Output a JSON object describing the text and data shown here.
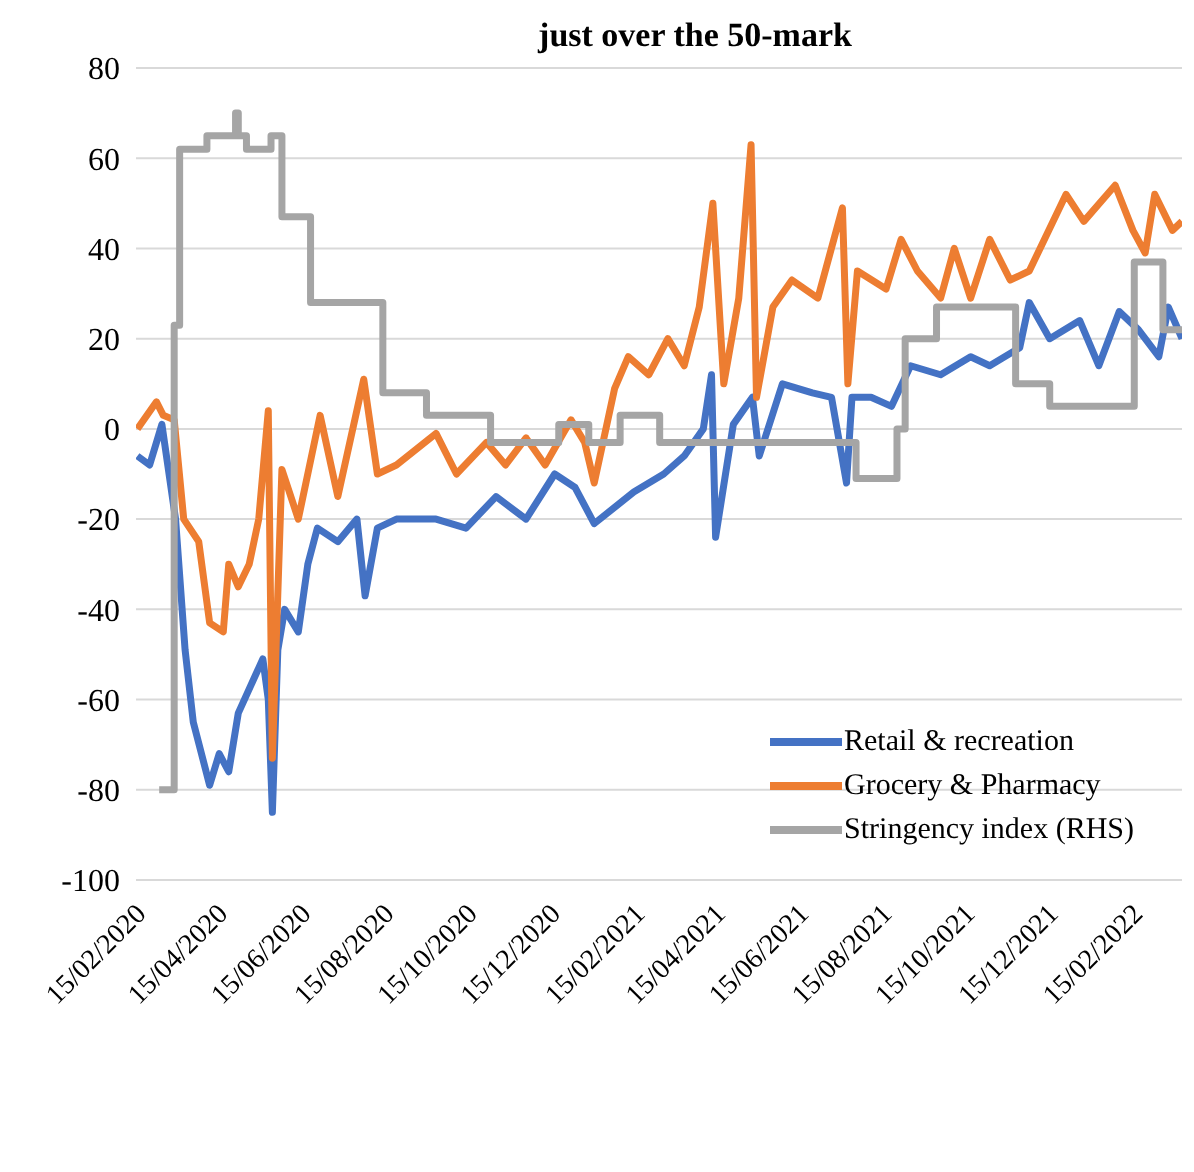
{
  "chart_data": {
    "type": "line",
    "title": "just over the 50-mark",
    "xlim": [
      "2020-02-15",
      "2022-03-23"
    ],
    "ylim": [
      -100,
      80
    ],
    "yticks": [
      -100,
      -80,
      -60,
      -40,
      -20,
      0,
      20,
      40,
      60,
      80
    ],
    "xticks": [
      {
        "value": "2020-02-15",
        "label": "15/02/2020"
      },
      {
        "value": "2020-04-15",
        "label": "15/04/2020"
      },
      {
        "value": "2020-06-15",
        "label": "15/06/2020"
      },
      {
        "value": "2020-08-15",
        "label": "15/08/2020"
      },
      {
        "value": "2020-10-15",
        "label": "15/10/2020"
      },
      {
        "value": "2020-12-15",
        "label": "15/12/2020"
      },
      {
        "value": "2021-02-15",
        "label": "15/02/2021"
      },
      {
        "value": "2021-04-15",
        "label": "15/04/2021"
      },
      {
        "value": "2021-06-15",
        "label": "15/06/2021"
      },
      {
        "value": "2021-08-15",
        "label": "15/08/2021"
      },
      {
        "value": "2021-10-15",
        "label": "15/10/2021"
      },
      {
        "value": "2021-12-15",
        "label": "15/12/2021"
      },
      {
        "value": "2022-02-15",
        "label": "15/02/2022"
      }
    ],
    "grid": "y",
    "legend": "bottom right",
    "marker": "none",
    "line_style": "solid",
    "series": [
      {
        "name": "Retail & recreation",
        "color": "#4472c4",
        "x": [
          "2020-02-16",
          "2020-02-25",
          "2020-03-05",
          "2020-03-15",
          "2020-03-22",
          "2020-03-28",
          "2020-04-09",
          "2020-04-16",
          "2020-04-23",
          "2020-04-30",
          "2020-05-12",
          "2020-05-18",
          "2020-05-22",
          "2020-05-25",
          "2020-05-29",
          "2020-06-03",
          "2020-06-13",
          "2020-06-20",
          "2020-06-27",
          "2020-07-12",
          "2020-07-26",
          "2020-08-01",
          "2020-08-10",
          "2020-08-24",
          "2020-09-22",
          "2020-10-14",
          "2020-11-05",
          "2020-11-27",
          "2020-12-18",
          "2021-01-02",
          "2021-01-16",
          "2021-02-14",
          "2021-03-08",
          "2021-03-23",
          "2021-04-06",
          "2021-04-12",
          "2021-04-15",
          "2021-04-28",
          "2021-05-12",
          "2021-05-17",
          "2021-06-03",
          "2021-06-25",
          "2021-07-09",
          "2021-07-20",
          "2021-07-24",
          "2021-08-07",
          "2021-08-22",
          "2021-09-05",
          "2021-09-27",
          "2021-10-19",
          "2021-11-02",
          "2021-11-24",
          "2021-12-01",
          "2021-12-16",
          "2022-01-07",
          "2022-01-21",
          "2022-02-05",
          "2022-02-19",
          "2022-03-06",
          "2022-03-13",
          "2022-03-23"
        ],
        "values": [
          -6,
          -8,
          1,
          -20,
          -49,
          -65,
          -79,
          -72,
          -76,
          -63,
          -55,
          -51,
          -60,
          -85,
          -49,
          -40,
          -45,
          -30,
          -22,
          -25,
          -20,
          -37,
          -22,
          -20,
          -20,
          -22,
          -15,
          -20,
          -10,
          -13,
          -21,
          -14,
          -10,
          -6,
          0,
          12,
          -24,
          1,
          7,
          -6,
          10,
          8,
          7,
          -12,
          7,
          7,
          5,
          14,
          12,
          16,
          14,
          18,
          28,
          20,
          24,
          14,
          26,
          22,
          16,
          27,
          20
        ]
      },
      {
        "name": "Grocery & Pharmacy",
        "color": "#ed7d31",
        "x": [
          "2020-02-16",
          "2020-03-01",
          "2020-03-06",
          "2020-03-14",
          "2020-03-21",
          "2020-04-01",
          "2020-04-09",
          "2020-04-19",
          "2020-04-23",
          "2020-04-30",
          "2020-05-08",
          "2020-05-15",
          "2020-05-22",
          "2020-05-25",
          "2020-06-01",
          "2020-06-13",
          "2020-06-29",
          "2020-07-12",
          "2020-07-31",
          "2020-08-10",
          "2020-08-24",
          "2020-09-22",
          "2020-10-07",
          "2020-10-29",
          "2020-11-12",
          "2020-11-27",
          "2020-12-11",
          "2020-12-30",
          "2021-01-09",
          "2021-01-16",
          "2021-01-31",
          "2021-02-10",
          "2021-02-25",
          "2021-03-11",
          "2021-03-23",
          "2021-04-03",
          "2021-04-13",
          "2021-04-21",
          "2021-05-02",
          "2021-05-11",
          "2021-05-15",
          "2021-05-27",
          "2021-06-10",
          "2021-06-29",
          "2021-07-17",
          "2021-07-21",
          "2021-07-28",
          "2021-08-18",
          "2021-08-29",
          "2021-09-10",
          "2021-09-27",
          "2021-10-07",
          "2021-10-19",
          "2021-11-02",
          "2021-11-17",
          "2021-12-01",
          "2021-12-28",
          "2022-01-10",
          "2022-02-02",
          "2022-02-15",
          "2022-02-24",
          "2022-03-03",
          "2022-03-16",
          "2022-03-23"
        ],
        "values": [
          0,
          6,
          3,
          2,
          -20,
          -25,
          -43,
          -45,
          -30,
          -35,
          -30,
          -20,
          4,
          -73,
          -9,
          -20,
          3,
          -15,
          11,
          -10,
          -8,
          -1,
          -10,
          -3,
          -8,
          -2,
          -8,
          2,
          -3,
          -12,
          9,
          16,
          12,
          20,
          14,
          27,
          50,
          10,
          29,
          63,
          7,
          27,
          33,
          29,
          49,
          10,
          35,
          31,
          42,
          35,
          29,
          40,
          29,
          42,
          33,
          35,
          52,
          46,
          54,
          44,
          39,
          52,
          44,
          46
        ]
      },
      {
        "name": "Stringency index (RHS)",
        "color": "#a5a5a5",
        "type": "step",
        "x": [
          "2020-03-03",
          "2020-03-09",
          "2020-03-14",
          "2020-03-18",
          "2020-04-06",
          "2020-04-07",
          "2020-04-25",
          "2020-04-28",
          "2020-04-30",
          "2020-05-06",
          "2020-05-24",
          "2020-06-01",
          "2020-06-22",
          "2020-08-14",
          "2020-09-15",
          "2020-11-01",
          "2020-12-21",
          "2021-01-12",
          "2021-02-04",
          "2021-03-05",
          "2021-07-27",
          "2021-08-26",
          "2021-09-01",
          "2021-09-24",
          "2021-11-21",
          "2021-12-16",
          "2022-02-16",
          "2022-03-09",
          "2022-03-23"
        ],
        "values": [
          -80,
          -80,
          23,
          62,
          62,
          65,
          65,
          70,
          65,
          62,
          65,
          47,
          28,
          8,
          3,
          -3,
          1,
          -3,
          3,
          -3,
          -11,
          0,
          20,
          27,
          10,
          5,
          37,
          22,
          22
        ]
      }
    ]
  }
}
